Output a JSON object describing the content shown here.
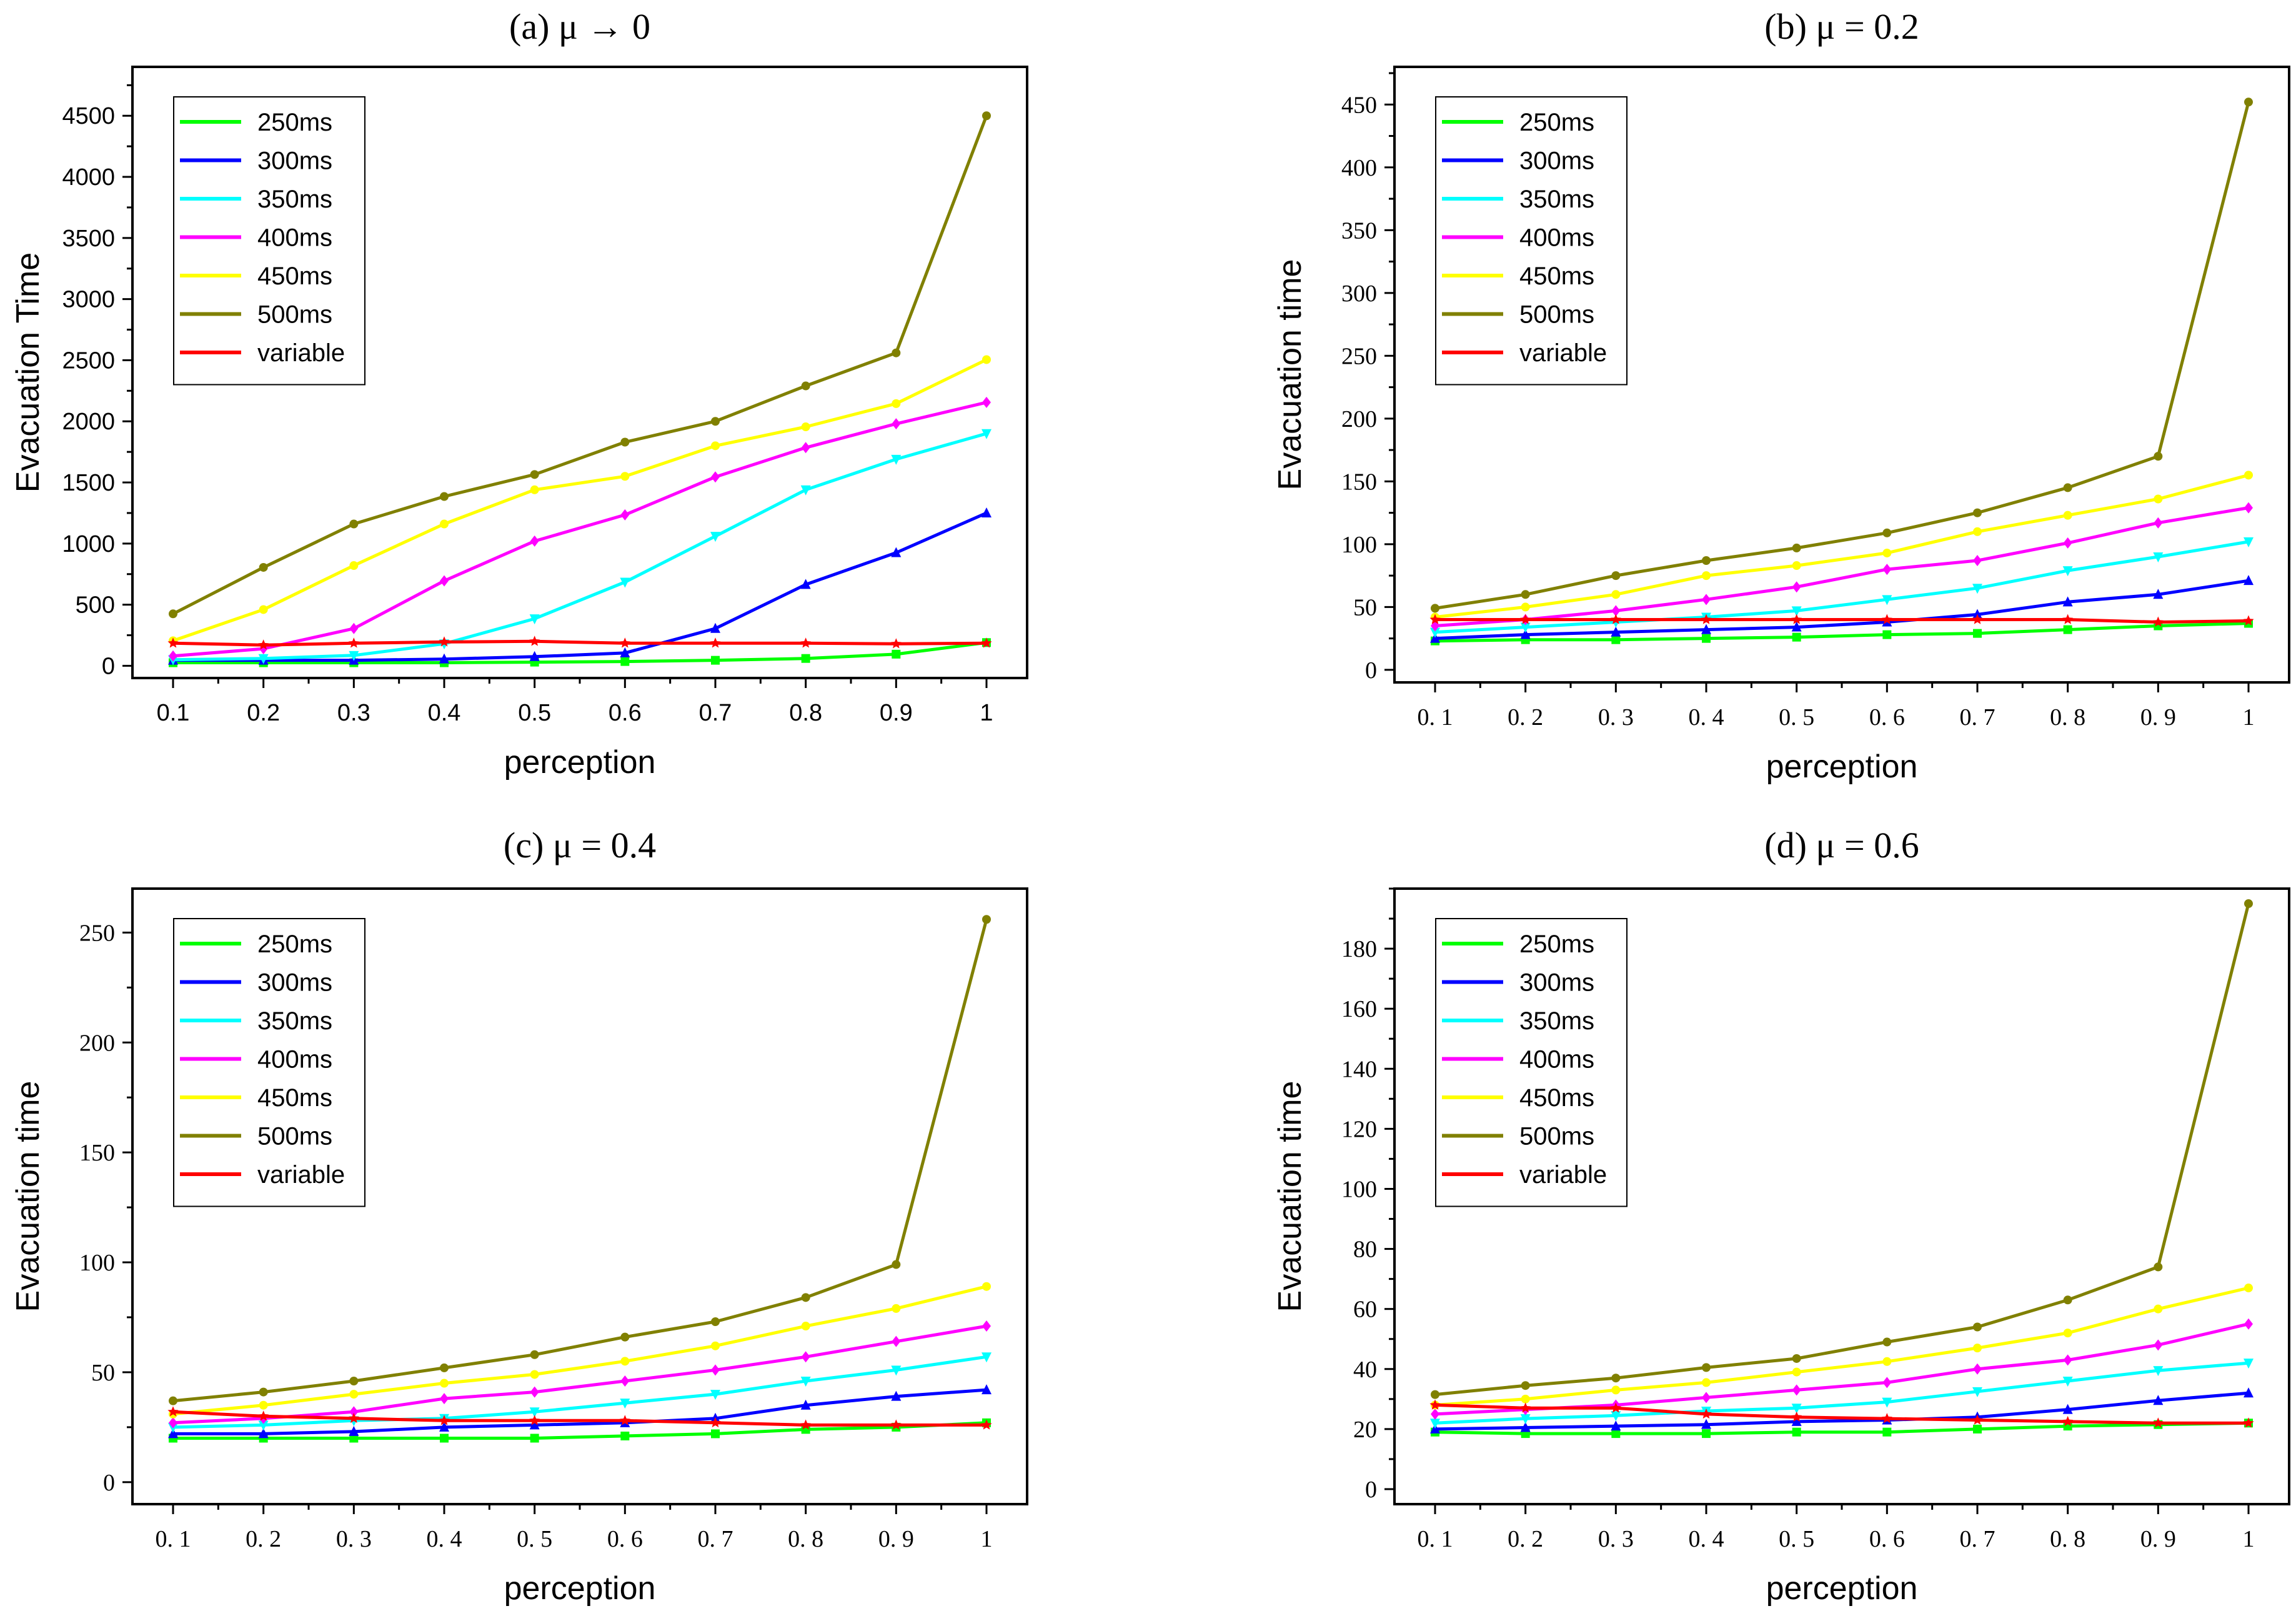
{
  "chart_data": [
    {
      "type": "line",
      "title": "(a) μ → 0",
      "xlabel": "perception",
      "ylabel": "Evacuation Time",
      "x": [
        "0.1",
        "0.2",
        "0.3",
        "0.4",
        "0.5",
        "0.6",
        "0.7",
        "0.8",
        "0.9",
        "1"
      ],
      "ylim": [
        -100,
        4900
      ],
      "yticks": [
        0,
        500,
        1000,
        1500,
        2000,
        2500,
        3000,
        3500,
        4000,
        4500
      ],
      "yminor": 250,
      "legend_position": "top-left",
      "series": [
        {
          "name": "250ms",
          "color": "#00ff00",
          "marker": "square",
          "values": [
            25,
            25,
            25,
            25,
            30,
            35,
            45,
            60,
            95,
            190
          ]
        },
        {
          "name": "300ms",
          "color": "#0000ff",
          "marker": "triangle-up",
          "values": [
            45,
            45,
            45,
            55,
            75,
            105,
            305,
            665,
            925,
            1250
          ]
        },
        {
          "name": "350ms",
          "color": "#00ffff",
          "marker": "triangle-down",
          "values": [
            50,
            60,
            85,
            180,
            385,
            685,
            1060,
            1440,
            1690,
            1900
          ]
        },
        {
          "name": "400ms",
          "color": "#ff00ff",
          "marker": "diamond",
          "values": [
            80,
            140,
            305,
            695,
            1020,
            1235,
            1545,
            1785,
            1980,
            2155
          ]
        },
        {
          "name": "450ms",
          "color": "#ffff00",
          "marker": "circle",
          "values": [
            205,
            460,
            820,
            1160,
            1440,
            1550,
            1800,
            1955,
            2145,
            2505
          ]
        },
        {
          "name": "500ms",
          "color": "#808000",
          "marker": "circle",
          "values": [
            425,
            805,
            1160,
            1385,
            1565,
            1830,
            2000,
            2290,
            2560,
            4500
          ]
        },
        {
          "name": "variable",
          "color": "#ff0000",
          "marker": "star",
          "values": [
            185,
            170,
            185,
            195,
            200,
            185,
            185,
            185,
            180,
            185
          ]
        }
      ]
    },
    {
      "type": "line",
      "title": "(b) μ = 0.2",
      "xlabel": "perception",
      "ylabel": "Evacuation time",
      "x": [
        "0. 1",
        "0. 2",
        "0. 3",
        "0. 4",
        "0. 5",
        "0. 6",
        "0. 7",
        "0. 8",
        "0. 9",
        "1"
      ],
      "ylim": [
        -10,
        480
      ],
      "yticks": [
        0,
        50,
        100,
        150,
        200,
        250,
        300,
        350,
        400,
        450
      ],
      "yminor": 25,
      "legend_position": "top-left",
      "series": [
        {
          "name": "250ms",
          "color": "#00ff00",
          "marker": "square",
          "values": [
            23,
            24,
            24,
            25,
            26,
            28,
            29,
            32,
            35,
            37
          ]
        },
        {
          "name": "300ms",
          "color": "#0000ff",
          "marker": "triangle-up",
          "values": [
            25,
            28,
            30,
            32,
            34,
            38,
            44,
            54,
            60,
            71
          ]
        },
        {
          "name": "350ms",
          "color": "#00ffff",
          "marker": "triangle-down",
          "values": [
            30,
            34,
            38,
            42,
            47,
            56,
            65,
            79,
            90,
            102
          ]
        },
        {
          "name": "400ms",
          "color": "#ff00ff",
          "marker": "diamond",
          "values": [
            35,
            40,
            47,
            56,
            66,
            80,
            87,
            101,
            117,
            129
          ]
        },
        {
          "name": "450ms",
          "color": "#ffff00",
          "marker": "circle",
          "values": [
            42,
            50,
            60,
            75,
            83,
            93,
            110,
            123,
            136,
            155
          ]
        },
        {
          "name": "500ms",
          "color": "#808000",
          "marker": "circle",
          "values": [
            49,
            60,
            75,
            87,
            97,
            109,
            125,
            145,
            170,
            452
          ]
        },
        {
          "name": "variable",
          "color": "#ff0000",
          "marker": "star",
          "values": [
            40,
            40,
            40,
            40,
            40,
            40,
            40,
            40,
            38,
            39
          ]
        }
      ]
    },
    {
      "type": "line",
      "title": "(c) μ = 0.4",
      "xlabel": "perception",
      "ylabel": "Evacuation time",
      "x": [
        "0. 1",
        "0. 2",
        "0. 3",
        "0. 4",
        "0. 5",
        "0. 6",
        "0. 7",
        "0. 8",
        "0. 9",
        "1"
      ],
      "ylim": [
        -10,
        270
      ],
      "yticks": [
        0,
        50,
        100,
        150,
        200,
        250
      ],
      "yminor": 25,
      "legend_position": "top-left",
      "series": [
        {
          "name": "250ms",
          "color": "#00ff00",
          "marker": "square",
          "values": [
            20,
            20,
            20,
            20,
            20,
            21,
            22,
            24,
            25,
            27
          ]
        },
        {
          "name": "300ms",
          "color": "#0000ff",
          "marker": "triangle-up",
          "values": [
            22,
            22,
            23,
            25,
            26,
            27,
            29,
            35,
            39,
            42
          ]
        },
        {
          "name": "350ms",
          "color": "#00ffff",
          "marker": "triangle-down",
          "values": [
            25,
            26,
            28,
            29,
            32,
            36,
            40,
            46,
            51,
            57
          ]
        },
        {
          "name": "400ms",
          "color": "#ff00ff",
          "marker": "diamond",
          "values": [
            27,
            29,
            32,
            38,
            41,
            46,
            51,
            57,
            64,
            71
          ]
        },
        {
          "name": "450ms",
          "color": "#ffff00",
          "marker": "circle",
          "values": [
            31,
            35,
            40,
            45,
            49,
            55,
            62,
            71,
            79,
            89
          ]
        },
        {
          "name": "500ms",
          "color": "#808000",
          "marker": "circle",
          "values": [
            37,
            41,
            46,
            52,
            58,
            66,
            73,
            84,
            99,
            256
          ]
        },
        {
          "name": "variable",
          "color": "#ff0000",
          "marker": "star",
          "values": [
            32,
            30,
            29,
            28,
            28,
            28,
            27,
            26,
            26,
            26
          ]
        }
      ]
    },
    {
      "type": "line",
      "title": "(d) μ = 0.6",
      "xlabel": "perception",
      "ylabel": "Evacuation time",
      "x": [
        "0. 1",
        "0. 2",
        "0. 3",
        "0. 4",
        "0. 5",
        "0. 6",
        "0. 7",
        "0. 8",
        "0. 9",
        "1"
      ],
      "ylim": [
        -5,
        200
      ],
      "yticks": [
        0,
        20,
        40,
        60,
        80,
        100,
        120,
        140,
        160,
        180
      ],
      "yminor": 10,
      "legend_position": "top-left",
      "series": [
        {
          "name": "250ms",
          "color": "#00ff00",
          "marker": "square",
          "values": [
            19,
            18.5,
            18.5,
            18.5,
            19,
            19,
            20,
            21,
            21.5,
            22
          ]
        },
        {
          "name": "300ms",
          "color": "#0000ff",
          "marker": "triangle-up",
          "values": [
            20,
            20.5,
            21,
            21.5,
            22.5,
            23,
            24,
            26.5,
            29.5,
            32
          ]
        },
        {
          "name": "350ms",
          "color": "#00ffff",
          "marker": "triangle-down",
          "values": [
            22,
            23.5,
            24.5,
            26,
            27,
            29,
            32.5,
            36,
            39.5,
            42
          ]
        },
        {
          "name": "400ms",
          "color": "#ff00ff",
          "marker": "diamond",
          "values": [
            25,
            26.5,
            28,
            30.5,
            33,
            35.5,
            40,
            43,
            48,
            55
          ]
        },
        {
          "name": "450ms",
          "color": "#ffff00",
          "marker": "circle",
          "values": [
            28,
            30,
            33,
            35.5,
            39,
            42.5,
            47,
            52,
            60,
            67
          ]
        },
        {
          "name": "500ms",
          "color": "#808000",
          "marker": "circle",
          "values": [
            31.5,
            34.5,
            37,
            40.5,
            43.5,
            49,
            54,
            63,
            74,
            195
          ]
        },
        {
          "name": "variable",
          "color": "#ff0000",
          "marker": "star",
          "values": [
            28,
            27,
            27,
            25,
            24,
            23.5,
            23,
            22.5,
            22,
            22
          ]
        }
      ]
    }
  ]
}
